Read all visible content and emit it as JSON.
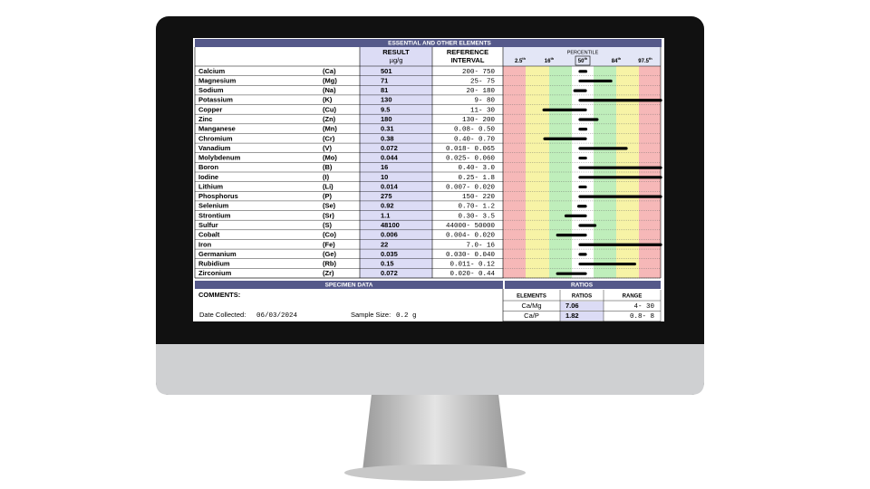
{
  "header": {
    "title": "ESSENTIAL AND OTHER ELEMENTS",
    "result_heading": "RESULT",
    "result_unit": "µg/g",
    "reference_heading": "REFERENCE",
    "reference_heading_2": "INTERVAL",
    "percentile_heading": "PERCENTILE",
    "percentile_labels": [
      "2.5",
      "16",
      "50",
      "84",
      "97.5"
    ],
    "ordinal_suffix": "th"
  },
  "table": {
    "rows": [
      [
        "Calcium",
        "(Ca)",
        "501",
        "200- 750"
      ],
      [
        "Magnesium",
        "(Mg)",
        "71",
        "25- 75"
      ],
      [
        "Sodium",
        "(Na)",
        "81",
        "20- 180"
      ],
      [
        "Potassium",
        "(K)",
        "130",
        "9- 80"
      ],
      [
        "Copper",
        "(Cu)",
        "9.5",
        "11- 30"
      ],
      [
        "Zinc",
        "(Zn)",
        "180",
        "130- 200"
      ],
      [
        "Manganese",
        "(Mn)",
        "0.31",
        "0.08- 0.50"
      ],
      [
        "Chromium",
        "(Cr)",
        "0.38",
        "0.40- 0.70"
      ],
      [
        "Vanadium",
        "(V)",
        "0.072",
        "0.018- 0.065"
      ],
      [
        "Molybdenum",
        "(Mo)",
        "0.044",
        "0.025- 0.060"
      ],
      [
        "Boron",
        "(B)",
        "16",
        "0.40- 3.0"
      ],
      [
        "Iodine",
        "(I)",
        "10",
        "0.25- 1.8"
      ],
      [
        "Lithium",
        "(Li)",
        "0.014",
        "0.007- 0.020"
      ],
      [
        "Phosphorus",
        "(P)",
        "275",
        "150- 220"
      ],
      [
        "Selenium",
        "(Se)",
        "0.92",
        "0.70- 1.2"
      ],
      [
        "Strontium",
        "(Sr)",
        "1.1",
        "0.30- 3.5"
      ],
      [
        "Sulfur",
        "(S)",
        "48100",
        "44000- 50000"
      ],
      [
        "Cobalt",
        "(Co)",
        "0.006",
        "0.004- 0.020"
      ],
      [
        "Iron",
        "(Fe)",
        "22",
        "7.0- 16"
      ],
      [
        "Germanium",
        "(Ge)",
        "0.035",
        "0.030- 0.040"
      ],
      [
        "Rubidium",
        "(Rb)",
        "0.15",
        "0.011- 0.12"
      ],
      [
        "Zirconium",
        "(Zr)",
        "0.072",
        "0.020- 0.44"
      ]
    ]
  },
  "specimen": {
    "title": "SPECIMEN DATA",
    "comments_label": "COMMENTS:",
    "date_label": "Date Collected:",
    "date": "06/03/2024",
    "size_label": "Sample Size:",
    "size": "0.2 g"
  },
  "ratios": {
    "title": "RATIOS",
    "headers": [
      "ELEMENTS",
      "RATIOS",
      "RANGE"
    ],
    "rows": [
      [
        "Ca/Mg",
        "7.06",
        "4- 30"
      ],
      [
        "Ca/P",
        "1.82",
        "0.8- 8"
      ]
    ]
  }
}
